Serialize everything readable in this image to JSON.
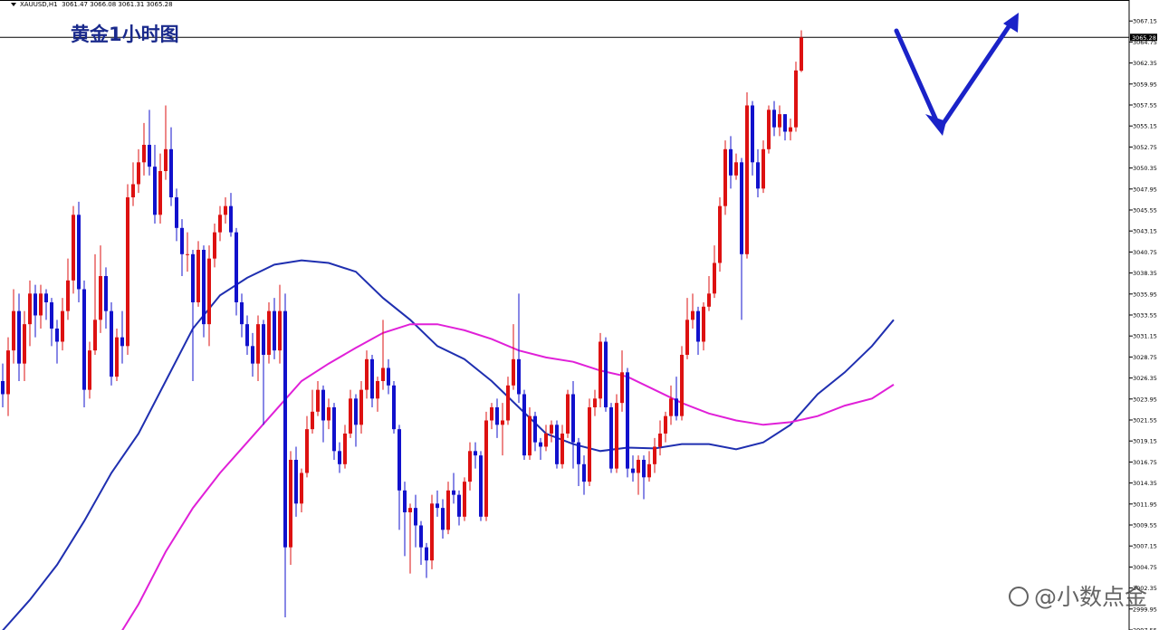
{
  "chart_header": {
    "symbol": "XAUUSD,H1",
    "ohlc": "3061.47 3066.08 3061.31 3065.28"
  },
  "title": "黄金1小时图",
  "watermark": "@小数点金",
  "colors": {
    "bull": "#dd1111",
    "bear": "#1111cc",
    "ma_fast": "#1f2fb0",
    "ma_slow": "#e020d8",
    "arrow": "#1a22c8",
    "axis": "#000000",
    "price_line": "#000000"
  },
  "chart_data": {
    "type": "candlestick",
    "x_range": [
      0,
      164
    ],
    "y_range": [
      2997.55,
      3069.55
    ],
    "y_ticks": [
      3067.15,
      3064.75,
      3062.35,
      3059.95,
      3057.55,
      3055.15,
      3052.75,
      3050.35,
      3047.95,
      3045.55,
      3043.15,
      3040.75,
      3038.35,
      3035.95,
      3033.55,
      3031.15,
      3028.75,
      3026.35,
      3023.95,
      3021.55,
      3019.15,
      3016.75,
      3014.35,
      3011.95,
      3009.55,
      3007.15,
      3004.75,
      3002.35,
      2999.95,
      2997.55
    ],
    "current_price": 3065.28,
    "candles": [
      [
        3026.0,
        3024.5,
        3028.0,
        3023.0
      ],
      [
        3024.5,
        3029.5,
        3031.0,
        3022.0
      ],
      [
        3029.5,
        3034.0,
        3036.5,
        3028.0
      ],
      [
        3034.0,
        3028.0,
        3036.0,
        3026.0
      ],
      [
        3028.0,
        3032.5,
        3034.0,
        3026.0
      ],
      [
        3032.5,
        3036.0,
        3037.5,
        3030.0
      ],
      [
        3036.0,
        3033.5,
        3037.0,
        3031.0
      ],
      [
        3033.5,
        3036.0,
        3037.0,
        3032.0
      ],
      [
        3036.0,
        3035.0,
        3036.5,
        3033.0
      ],
      [
        3035.0,
        3032.0,
        3035.5,
        3030.0
      ],
      [
        3032.0,
        3030.5,
        3033.0,
        3028.0
      ],
      [
        3030.5,
        3034.0,
        3035.5,
        3029.5
      ],
      [
        3034.0,
        3037.5,
        3040.0,
        3033.0
      ],
      [
        3037.5,
        3045.0,
        3046.0,
        3036.0
      ],
      [
        3045.0,
        3036.5,
        3046.5,
        3035.0
      ],
      [
        3036.5,
        3025.0,
        3037.5,
        3023.0
      ],
      [
        3025.0,
        3029.5,
        3030.5,
        3024.0
      ],
      [
        3029.5,
        3033.0,
        3040.5,
        3029.0
      ],
      [
        3033.0,
        3038.0,
        3041.5,
        3031.5
      ],
      [
        3038.0,
        3034.0,
        3039.0,
        3032.0
      ],
      [
        3034.0,
        3026.5,
        3035.0,
        3025.5
      ],
      [
        3026.5,
        3031.0,
        3032.0,
        3026.0
      ],
      [
        3031.0,
        3030.0,
        3034.0,
        3028.0
      ],
      [
        3030.0,
        3047.0,
        3048.5,
        3029.0
      ],
      [
        3047.0,
        3048.5,
        3051.0,
        3046.0
      ],
      [
        3048.5,
        3051.0,
        3052.5,
        3047.5
      ],
      [
        3051.0,
        3053.0,
        3055.5,
        3049.5
      ],
      [
        3053.0,
        3050.5,
        3057.0,
        3049.5
      ],
      [
        3050.5,
        3045.0,
        3053.0,
        3044.0
      ],
      [
        3045.0,
        3050.0,
        3052.0,
        3044.0
      ],
      [
        3050.0,
        3052.5,
        3057.5,
        3049.0
      ],
      [
        3052.5,
        3047.0,
        3055.0,
        3046.0
      ],
      [
        3047.0,
        3043.5,
        3048.0,
        3042.0
      ],
      [
        3043.5,
        3040.5,
        3044.5,
        3038.0
      ],
      [
        3040.5,
        3040.5,
        3043.0,
        3038.5
      ],
      [
        3040.5,
        3035.0,
        3041.0,
        3026.0
      ],
      [
        3035.0,
        3041.0,
        3042.0,
        3034.5
      ],
      [
        3041.0,
        3032.5,
        3041.5,
        3031.0
      ],
      [
        3032.5,
        3040.0,
        3041.5,
        3030.0
      ],
      [
        3040.0,
        3043.0,
        3044.0,
        3039.0
      ],
      [
        3043.0,
        3045.0,
        3046.0,
        3042.0
      ],
      [
        3045.0,
        3046.0,
        3047.0,
        3044.0
      ],
      [
        3046.0,
        3043.0,
        3047.5,
        3042.5
      ],
      [
        3043.0,
        3035.0,
        3043.5,
        3033.5
      ],
      [
        3035.0,
        3032.5,
        3036.0,
        3031.0
      ],
      [
        3032.5,
        3030.0,
        3033.5,
        3029.0
      ],
      [
        3030.0,
        3028.0,
        3031.5,
        3026.5
      ],
      [
        3028.0,
        3032.5,
        3033.5,
        3026.0
      ],
      [
        3032.5,
        3029.0,
        3033.0,
        3021.0
      ],
      [
        3029.0,
        3034.0,
        3035.0,
        3028.0
      ],
      [
        3034.0,
        3029.5,
        3035.5,
        3028.5
      ],
      [
        3029.5,
        3034.0,
        3037.0,
        3028.0
      ],
      [
        3034.0,
        3007.0,
        3036.0,
        2999.0
      ],
      [
        3007.0,
        3017.0,
        3018.0,
        3005.0
      ],
      [
        3017.0,
        3012.0,
        3018.5,
        3010.5
      ],
      [
        3012.0,
        3015.5,
        3016.0,
        3011.0
      ],
      [
        3015.5,
        3020.5,
        3022.0,
        3015.0
      ],
      [
        3020.5,
        3022.5,
        3025.0,
        3020.0
      ],
      [
        3022.5,
        3025.0,
        3026.0,
        3022.0
      ],
      [
        3025.0,
        3021.5,
        3025.5,
        3019.0
      ],
      [
        3021.5,
        3023.0,
        3024.0,
        3020.5
      ],
      [
        3023.0,
        3018.0,
        3023.5,
        3017.0
      ],
      [
        3018.0,
        3016.5,
        3019.0,
        3015.5
      ],
      [
        3016.5,
        3020.0,
        3021.0,
        3016.0
      ],
      [
        3020.0,
        3024.0,
        3025.0,
        3019.5
      ],
      [
        3024.0,
        3021.0,
        3024.5,
        3018.5
      ],
      [
        3021.0,
        3025.0,
        3026.0,
        3020.0
      ],
      [
        3025.0,
        3028.5,
        3029.5,
        3024.0
      ],
      [
        3028.5,
        3024.0,
        3029.0,
        3023.0
      ],
      [
        3024.0,
        3026.0,
        3026.5,
        3022.5
      ],
      [
        3026.0,
        3027.5,
        3033.0,
        3025.0
      ],
      [
        3027.5,
        3025.5,
        3028.5,
        3024.5
      ],
      [
        3025.5,
        3020.5,
        3026.0,
        3020.0
      ],
      [
        3020.5,
        3013.5,
        3021.0,
        3009.0
      ],
      [
        3013.5,
        3011.0,
        3014.5,
        3006.0
      ],
      [
        3011.0,
        3011.5,
        3012.0,
        3004.0
      ],
      [
        3011.5,
        3009.5,
        3013.0,
        3007.0
      ],
      [
        3009.5,
        3007.0,
        3010.0,
        3005.0
      ],
      [
        3007.0,
        3005.5,
        3007.5,
        3003.5
      ],
      [
        3005.5,
        3012.0,
        3013.0,
        3004.5
      ],
      [
        3012.0,
        3011.5,
        3013.5,
        3010.5
      ],
      [
        3011.5,
        3009.0,
        3012.5,
        3008.0
      ],
      [
        3009.0,
        3013.5,
        3014.5,
        3008.5
      ],
      [
        3013.5,
        3013.0,
        3015.5,
        3012.0
      ],
      [
        3013.0,
        3010.5,
        3013.5,
        3009.5
      ],
      [
        3010.5,
        3014.5,
        3015.0,
        3010.0
      ],
      [
        3014.5,
        3018.0,
        3019.0,
        3013.5
      ],
      [
        3018.0,
        3017.5,
        3019.0,
        3016.0
      ],
      [
        3017.5,
        3010.5,
        3018.0,
        3010.0
      ],
      [
        3010.5,
        3021.5,
        3022.5,
        3010.0
      ],
      [
        3021.5,
        3023.0,
        3023.5,
        3020.5
      ],
      [
        3023.0,
        3021.0,
        3024.0,
        3019.5
      ],
      [
        3021.0,
        3021.5,
        3023.5,
        3017.5
      ],
      [
        3021.5,
        3025.5,
        3026.5,
        3021.0
      ],
      [
        3025.5,
        3028.5,
        3032.5,
        3025.0
      ],
      [
        3028.5,
        3024.5,
        3036.0,
        3023.5
      ],
      [
        3024.5,
        3017.5,
        3025.0,
        3017.0
      ],
      [
        3017.5,
        3022.0,
        3023.0,
        3017.0
      ],
      [
        3022.0,
        3019.0,
        3022.5,
        3018.0
      ],
      [
        3019.0,
        3018.5,
        3019.5,
        3017.0
      ],
      [
        3018.5,
        3020.0,
        3021.0,
        3018.0
      ],
      [
        3020.0,
        3021.0,
        3021.5,
        3019.0
      ],
      [
        3021.0,
        3016.5,
        3021.5,
        3016.0
      ],
      [
        3016.5,
        3020.0,
        3021.0,
        3016.0
      ],
      [
        3020.0,
        3024.5,
        3025.0,
        3019.5
      ],
      [
        3024.5,
        3019.0,
        3026.0,
        3016.0
      ],
      [
        3019.0,
        3016.5,
        3019.5,
        3014.0
      ],
      [
        3016.5,
        3014.5,
        3017.5,
        3013.0
      ],
      [
        3014.5,
        3023.0,
        3024.0,
        3014.0
      ],
      [
        3023.0,
        3024.0,
        3025.0,
        3022.0
      ],
      [
        3024.0,
        3030.5,
        3031.5,
        3023.0
      ],
      [
        3030.5,
        3023.0,
        3031.0,
        3022.5
      ],
      [
        3023.0,
        3016.0,
        3023.5,
        3015.5
      ],
      [
        3016.0,
        3023.5,
        3024.5,
        3015.5
      ],
      [
        3023.5,
        3027.0,
        3029.5,
        3022.5
      ],
      [
        3027.0,
        3016.0,
        3027.5,
        3015.0
      ],
      [
        3016.0,
        3015.5,
        3017.5,
        3014.5
      ],
      [
        3015.5,
        3017.0,
        3017.5,
        3013.0
      ],
      [
        3017.0,
        3015.0,
        3017.5,
        3012.5
      ],
      [
        3015.0,
        3016.5,
        3018.0,
        3014.5
      ],
      [
        3016.5,
        3018.5,
        3019.5,
        3015.5
      ],
      [
        3018.5,
        3020.0,
        3021.5,
        3017.5
      ],
      [
        3020.0,
        3022.0,
        3022.5,
        3019.0
      ],
      [
        3022.0,
        3024.0,
        3025.5,
        3021.0
      ],
      [
        3024.0,
        3022.0,
        3026.5,
        3021.5
      ],
      [
        3022.0,
        3029.0,
        3030.0,
        3021.5
      ],
      [
        3029.0,
        3033.0,
        3035.5,
        3028.5
      ],
      [
        3033.0,
        3034.0,
        3036.0,
        3032.0
      ],
      [
        3034.0,
        3030.5,
        3034.5,
        3029.0
      ],
      [
        3030.5,
        3034.5,
        3035.0,
        3029.5
      ],
      [
        3034.5,
        3036.0,
        3038.0,
        3034.0
      ],
      [
        3036.0,
        3039.5,
        3041.5,
        3035.5
      ],
      [
        3039.5,
        3046.0,
        3047.0,
        3038.5
      ],
      [
        3046.0,
        3052.5,
        3053.5,
        3045.0
      ],
      [
        3052.5,
        3049.5,
        3054.0,
        3048.0
      ],
      [
        3049.5,
        3051.0,
        3052.0,
        3049.0
      ],
      [
        3051.0,
        3040.5,
        3051.5,
        3033.0
      ],
      [
        3040.5,
        3057.5,
        3059.0,
        3040.0
      ],
      [
        3057.5,
        3051.0,
        3058.0,
        3049.5
      ],
      [
        3051.0,
        3048.0,
        3052.5,
        3047.0
      ],
      [
        3048.0,
        3052.5,
        3053.5,
        3047.5
      ],
      [
        3052.5,
        3057.0,
        3057.5,
        3052.0
      ],
      [
        3057.0,
        3055.0,
        3058.0,
        3054.0
      ],
      [
        3055.0,
        3056.5,
        3057.5,
        3054.0
      ],
      [
        3056.5,
        3054.5,
        3056.5,
        3053.5
      ],
      [
        3054.5,
        3055.0,
        3056.0,
        3053.5
      ],
      [
        3055.0,
        3061.5,
        3062.5,
        3054.5
      ],
      [
        3061.47,
        3065.28,
        3066.08,
        3061.31
      ]
    ],
    "series": [
      {
        "name": "",
        "color": "ma_fast",
        "points": [
          [
            0,
            2997.5
          ],
          [
            5,
            3001.0
          ],
          [
            10,
            3005.0
          ],
          [
            15,
            3010.0
          ],
          [
            20,
            3015.5
          ],
          [
            25,
            3020.0
          ],
          [
            30,
            3026.0
          ],
          [
            35,
            3032.0
          ],
          [
            40,
            3035.8
          ],
          [
            45,
            3037.8
          ],
          [
            50,
            3039.3
          ],
          [
            55,
            3039.8
          ],
          [
            60,
            3039.5
          ],
          [
            65,
            3038.5
          ],
          [
            70,
            3035.5
          ],
          [
            75,
            3033.0
          ],
          [
            80,
            3030.0
          ],
          [
            85,
            3028.5
          ],
          [
            90,
            3026.0
          ],
          [
            95,
            3023.0
          ],
          [
            100,
            3020.0
          ],
          [
            105,
            3018.8
          ],
          [
            110,
            3018.0
          ],
          [
            115,
            3018.4
          ],
          [
            120,
            3018.3
          ],
          [
            125,
            3018.8
          ],
          [
            130,
            3018.8
          ],
          [
            135,
            3018.2
          ],
          [
            140,
            3019.0
          ],
          [
            145,
            3021.0
          ],
          [
            150,
            3024.5
          ],
          [
            155,
            3027.0
          ],
          [
            160,
            3030.0
          ],
          [
            164,
            3033.0
          ]
        ]
      },
      {
        "name": "",
        "color": "ma_slow",
        "points": [
          [
            22,
            2997.5
          ],
          [
            25,
            3000.5
          ],
          [
            30,
            3006.5
          ],
          [
            35,
            3011.5
          ],
          [
            40,
            3015.5
          ],
          [
            45,
            3019.0
          ],
          [
            50,
            3022.5
          ],
          [
            55,
            3026.0
          ],
          [
            60,
            3028.0
          ],
          [
            65,
            3029.8
          ],
          [
            70,
            3031.5
          ],
          [
            75,
            3032.5
          ],
          [
            80,
            3032.5
          ],
          [
            85,
            3031.8
          ],
          [
            90,
            3030.8
          ],
          [
            95,
            3029.5
          ],
          [
            100,
            3028.7
          ],
          [
            105,
            3028.2
          ],
          [
            110,
            3027.2
          ],
          [
            115,
            3026.5
          ],
          [
            120,
            3025.0
          ],
          [
            125,
            3023.5
          ],
          [
            130,
            3022.3
          ],
          [
            135,
            3021.5
          ],
          [
            140,
            3021.0
          ],
          [
            145,
            3021.3
          ],
          [
            150,
            3022.0
          ],
          [
            155,
            3023.2
          ],
          [
            160,
            3024.0
          ],
          [
            164,
            3025.6
          ]
        ]
      }
    ]
  }
}
